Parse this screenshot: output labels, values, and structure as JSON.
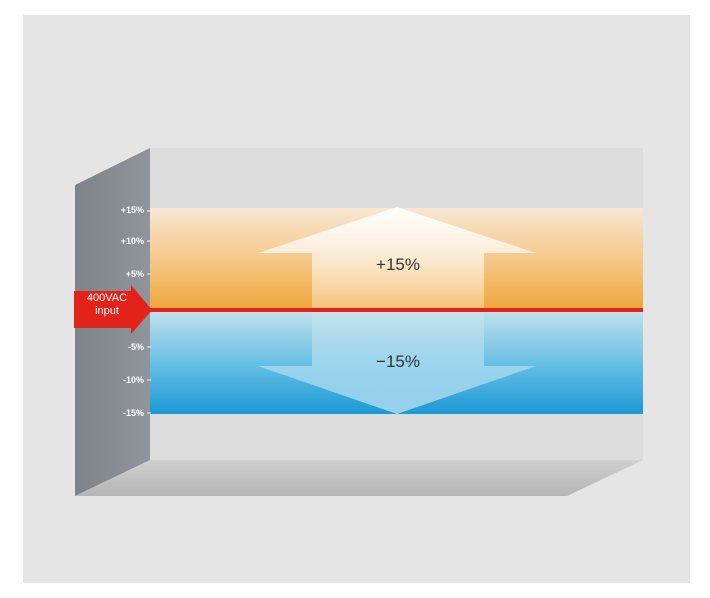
{
  "diagram": {
    "input_label": [
      "400VAC",
      "input"
    ],
    "upper_range_label": "+15%",
    "lower_range_label": "−15%",
    "scale_ticks": [
      "+15%",
      "+10%",
      "+5%",
      "-5%",
      "-10%",
      "-15%"
    ],
    "colors": {
      "background_panel": "#e5e5e5",
      "left_wall": "#868b92",
      "upper_band": "#f0a638",
      "lower_band": "#199ad6",
      "reference_line": "#e2231a",
      "arrow_fill": "#ffffff"
    }
  }
}
